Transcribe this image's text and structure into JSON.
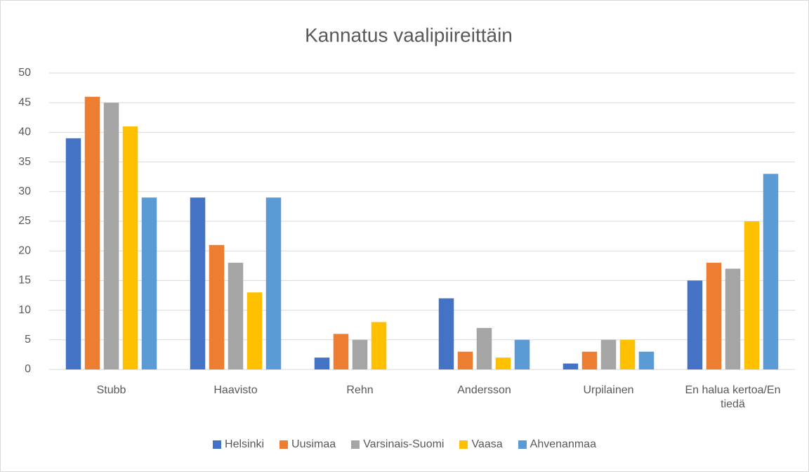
{
  "chart_data": {
    "type": "bar",
    "title": "Kannatus vaalipiireittäin",
    "categories": [
      "Stubb",
      "Haavisto",
      "Rehn",
      "Andersson",
      "Urpilainen",
      "En halua kertoa/En tiedä"
    ],
    "series": [
      {
        "name": "Helsinki",
        "color": "#4472c4",
        "values": [
          39,
          29,
          2,
          12,
          1,
          15
        ]
      },
      {
        "name": "Uusimaa",
        "color": "#ed7d31",
        "values": [
          46,
          21,
          6,
          3,
          3,
          18
        ]
      },
      {
        "name": "Varsinais-Suomi",
        "color": "#a5a5a5",
        "values": [
          45,
          18,
          5,
          7,
          5,
          17
        ]
      },
      {
        "name": "Vaasa",
        "color": "#ffc000",
        "values": [
          41,
          13,
          8,
          2,
          5,
          25
        ]
      },
      {
        "name": "Ahvenanmaa",
        "color": "#5b9bd5",
        "values": [
          29,
          29,
          0,
          5,
          3,
          33
        ]
      }
    ],
    "ylim": [
      0,
      50
    ],
    "yticks": [
      0,
      5,
      10,
      15,
      20,
      25,
      30,
      35,
      40,
      45,
      50
    ],
    "grid": true,
    "legend": "bottom"
  }
}
